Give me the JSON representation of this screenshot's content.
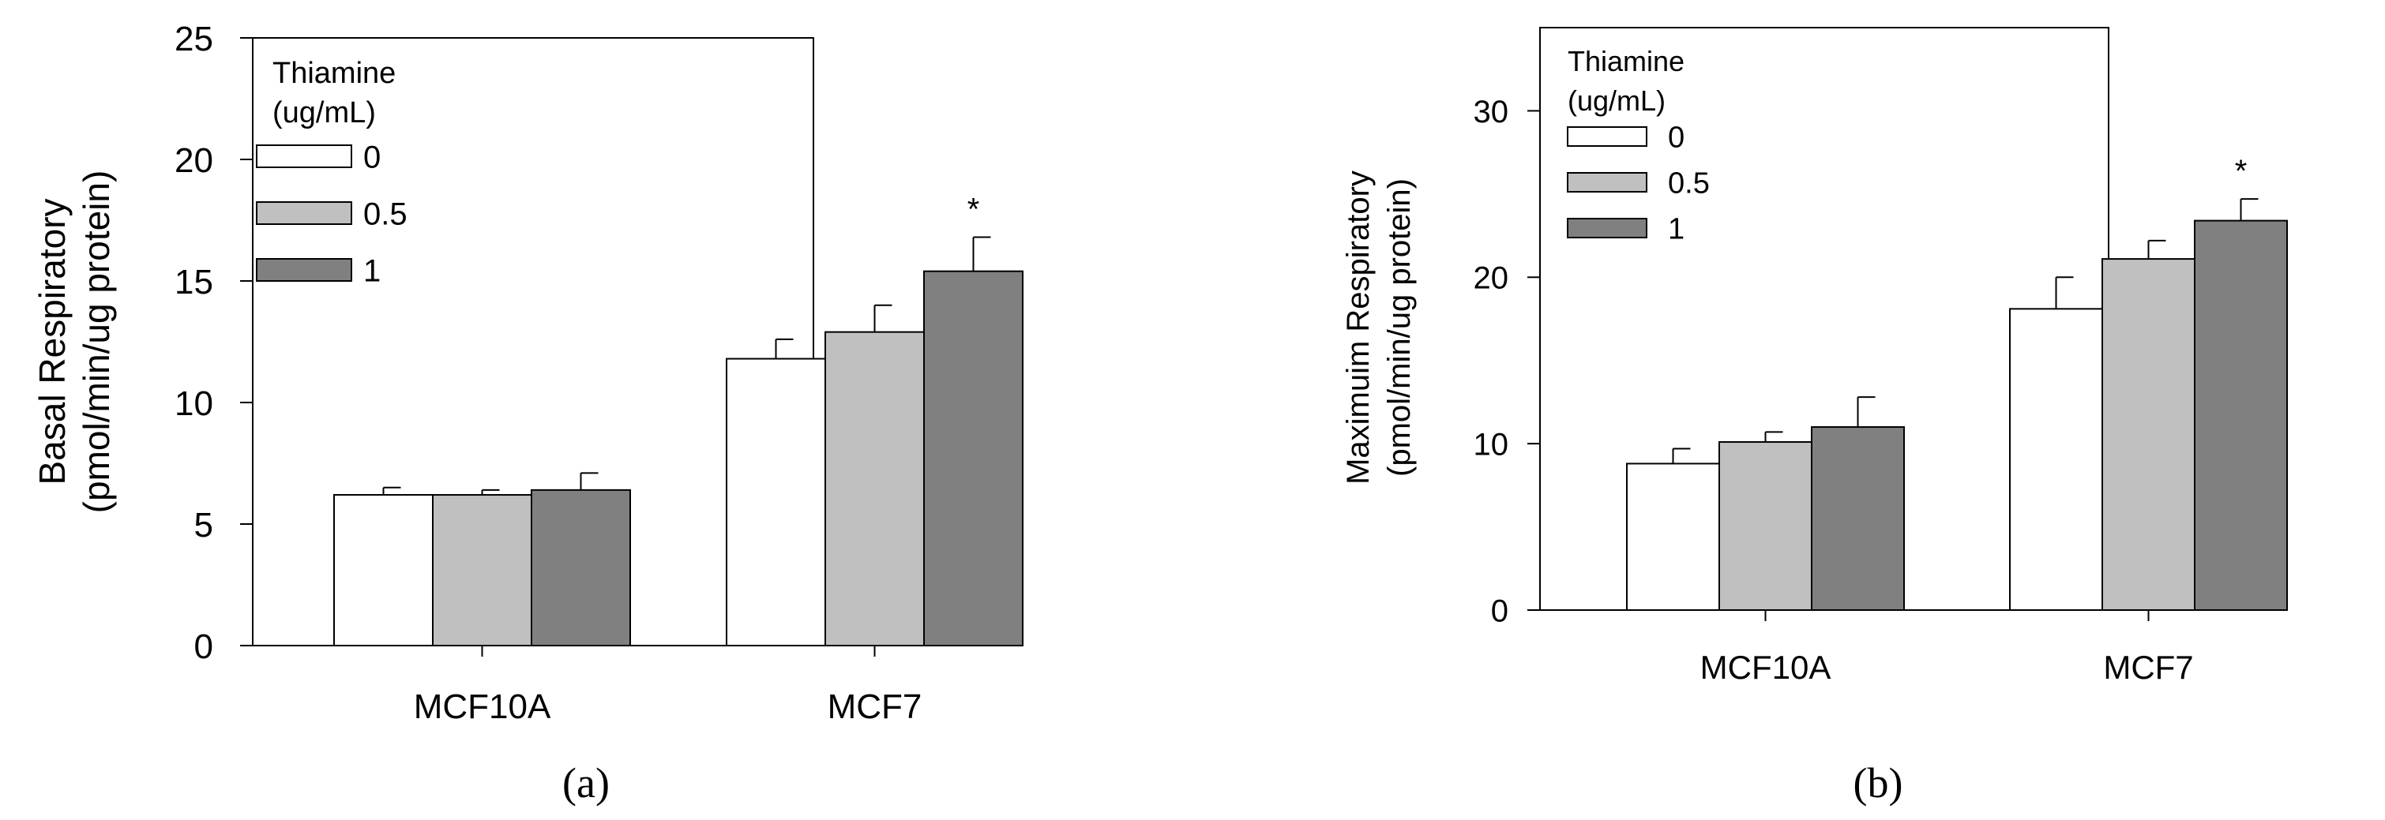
{
  "colors": {
    "series": [
      "#ffffff",
      "#c0c0c0",
      "#808080"
    ],
    "stroke": "#000000"
  },
  "chart_data": [
    {
      "type": "bar",
      "panel_label": "(a)",
      "ylabel_line1": "Basal Respiratory",
      "ylabel_line2": "(pmol/min/ug protein)",
      "xlabel": "",
      "ylim": [
        0,
        25
      ],
      "yticks": [
        0,
        5,
        10,
        15,
        20,
        25
      ],
      "categories": [
        "MCF10A",
        "MCF7"
      ],
      "legend_title_line1": "Thiamine",
      "legend_title_line2": "(ug/mL)",
      "legend_position": "top-left",
      "series": [
        {
          "name": "0",
          "values": [
            6.2,
            11.8
          ],
          "errors": [
            0.3,
            0.8
          ]
        },
        {
          "name": "0.5",
          "values": [
            6.2,
            12.9
          ],
          "errors": [
            0.2,
            1.1
          ]
        },
        {
          "name": "1",
          "values": [
            6.4,
            15.4
          ],
          "errors": [
            0.7,
            1.4
          ]
        }
      ],
      "annotations": [
        {
          "category": "MCF7",
          "series": "1",
          "text": "*"
        }
      ]
    },
    {
      "type": "bar",
      "panel_label": "(b)",
      "ylabel_line1": "Maximuim  Respiratory",
      "ylabel_line2": "(pmol/min/ug protein)",
      "xlabel": "",
      "ylim": [
        0,
        35
      ],
      "yticks": [
        0,
        10,
        20,
        30
      ],
      "categories": [
        "MCF10A",
        "MCF7"
      ],
      "legend_title_line1": "Thiamine",
      "legend_title_line2": "(ug/mL)",
      "legend_position": "top-left",
      "series": [
        {
          "name": "0",
          "values": [
            8.8,
            18.1
          ],
          "errors": [
            0.9,
            1.9
          ]
        },
        {
          "name": "0.5",
          "values": [
            10.1,
            21.1
          ],
          "errors": [
            0.6,
            1.1
          ]
        },
        {
          "name": "1",
          "values": [
            11.0,
            23.4
          ],
          "errors": [
            1.8,
            1.3
          ]
        }
      ],
      "annotations": [
        {
          "category": "MCF7",
          "series": "1",
          "text": "*"
        }
      ]
    }
  ]
}
